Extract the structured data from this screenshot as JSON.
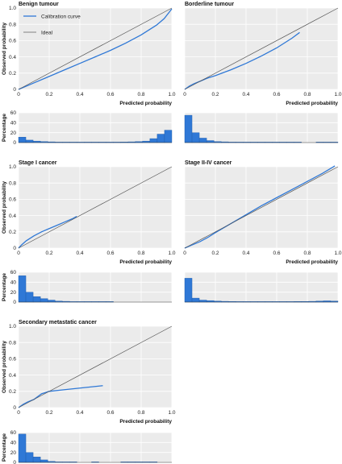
{
  "legend": {
    "calibration_label": "Calibration curve",
    "ideal_label": "Ideal"
  },
  "colors": {
    "calibration": "#2f78d6",
    "ideal": "#555555",
    "panel_bg": "#ebebeb",
    "bar": "#2f78d6"
  },
  "chart_data": [
    {
      "type": "line",
      "title": "Benign tumour",
      "xlabel": "Predicted probability",
      "ylabel": "Observed probability",
      "xlim": [
        0,
        1
      ],
      "ylim": [
        0,
        1
      ],
      "xticks": [
        "0",
        "0.2",
        "0.4",
        "0.6",
        "0.8",
        "1.0"
      ],
      "yticks": [
        "0",
        "0.2",
        "0.4",
        "0.6",
        "0.8",
        "1.0"
      ],
      "series": [
        {
          "name": "Calibration curve",
          "x": [
            0,
            0.1,
            0.2,
            0.3,
            0.4,
            0.5,
            0.6,
            0.7,
            0.8,
            0.9,
            0.95,
            1.0
          ],
          "y": [
            0,
            0.08,
            0.16,
            0.24,
            0.32,
            0.4,
            0.48,
            0.57,
            0.67,
            0.79,
            0.87,
            0.99
          ]
        },
        {
          "name": "Ideal",
          "x": [
            0,
            1
          ],
          "y": [
            0,
            1
          ]
        }
      ],
      "histogram": {
        "ylabel": "Percentage",
        "yticks": [
          "0",
          "20",
          "40",
          "60"
        ],
        "ylim": [
          0,
          60
        ],
        "values": [
          11,
          5,
          3,
          2,
          1.5,
          1,
          1,
          0.8,
          0.8,
          1,
          1,
          1,
          1,
          1,
          1.2,
          1.5,
          2,
          3,
          8,
          17,
          25
        ]
      }
    },
    {
      "type": "line",
      "title": "Borderline tumour",
      "xlabel": "Predicted probability",
      "ylabel": "",
      "xlim": [
        0,
        1
      ],
      "ylim": [
        0,
        1
      ],
      "xticks": [
        "0",
        "0.2",
        "0.4",
        "0.6",
        "0.8",
        "1.0"
      ],
      "yticks": [],
      "series": [
        {
          "name": "Calibration curve",
          "x": [
            0,
            0.03,
            0.06,
            0.1,
            0.15,
            0.2,
            0.3,
            0.4,
            0.5,
            0.6,
            0.7,
            0.75
          ],
          "y": [
            0,
            0.04,
            0.07,
            0.1,
            0.14,
            0.17,
            0.24,
            0.32,
            0.41,
            0.51,
            0.63,
            0.7
          ]
        },
        {
          "name": "Ideal",
          "x": [
            0,
            1
          ],
          "y": [
            0,
            1
          ]
        }
      ],
      "histogram": {
        "ylabel": "",
        "yticks": [],
        "ylim": [
          0,
          60
        ],
        "values": [
          55,
          20,
          9,
          4,
          2,
          1.5,
          1,
          0.8,
          0.6,
          0.5,
          0.4,
          0.3,
          0.3,
          0.2,
          0.2,
          0.1,
          0,
          0,
          0.1,
          0.2,
          0.2
        ]
      }
    },
    {
      "type": "line",
      "title": "Stage I cancer",
      "xlabel": "Predicted probability",
      "ylabel": "Observed probability",
      "xlim": [
        0,
        1
      ],
      "ylim": [
        0,
        1
      ],
      "xticks": [
        "0",
        "0.2",
        "0.4",
        "0.6",
        "0.8",
        "1.0"
      ],
      "yticks": [
        "0",
        "0.2",
        "0.4",
        "0.6",
        "0.8",
        "1.0"
      ],
      "series": [
        {
          "name": "Calibration curve",
          "x": [
            0,
            0.02,
            0.05,
            0.1,
            0.15,
            0.2,
            0.25,
            0.3,
            0.35,
            0.38
          ],
          "y": [
            0,
            0.04,
            0.09,
            0.15,
            0.2,
            0.24,
            0.28,
            0.32,
            0.36,
            0.39
          ]
        },
        {
          "name": "Ideal",
          "x": [
            0,
            1
          ],
          "y": [
            0,
            1
          ]
        }
      ],
      "histogram": {
        "ylabel": "Percentage",
        "yticks": [
          "0",
          "20",
          "40",
          "60"
        ],
        "ylim": [
          0,
          60
        ],
        "values": [
          53,
          20,
          11,
          7,
          4,
          2,
          1.5,
          0.8,
          0.5,
          0.4,
          0.3,
          0.2,
          0.1,
          0,
          0,
          0,
          0,
          0,
          0,
          0,
          0
        ]
      }
    },
    {
      "type": "line",
      "title": "Stage II-IV cancer",
      "xlabel": "Predicted probability",
      "ylabel": "",
      "xlim": [
        0,
        1
      ],
      "ylim": [
        0,
        1
      ],
      "xticks": [
        "0",
        "0.2",
        "0.4",
        "0.6",
        "0.8",
        "1.0"
      ],
      "yticks": [],
      "series": [
        {
          "name": "Calibration curve",
          "x": [
            0,
            0.05,
            0.1,
            0.15,
            0.2,
            0.3,
            0.4,
            0.5,
            0.6,
            0.7,
            0.8,
            0.9,
            0.98
          ],
          "y": [
            0,
            0.04,
            0.08,
            0.13,
            0.19,
            0.3,
            0.41,
            0.52,
            0.62,
            0.72,
            0.82,
            0.92,
            1.01
          ]
        },
        {
          "name": "Ideal",
          "x": [
            0,
            1
          ],
          "y": [
            0,
            1
          ]
        }
      ],
      "histogram": {
        "ylabel": "",
        "yticks": [],
        "ylim": [
          0,
          60
        ],
        "values": [
          48,
          8,
          4,
          3,
          2,
          1.5,
          1.2,
          1,
          1,
          1,
          1,
          1,
          1,
          1,
          1,
          1.2,
          1.3,
          1.5,
          2,
          2.5,
          2
        ]
      }
    },
    {
      "type": "line",
      "title": "Secondary metastatic cancer",
      "xlabel": "Predicted probability",
      "ylabel": "Observed probability",
      "xlim": [
        0,
        1
      ],
      "ylim": [
        0,
        1
      ],
      "xticks": [
        "0",
        "0.2",
        "0.4",
        "0.6",
        "0.8",
        "1.0"
      ],
      "yticks": [
        "0",
        "0.2",
        "0.4",
        "0.6",
        "0.8",
        "1.0"
      ],
      "series": [
        {
          "name": "Calibration curve",
          "x": [
            0,
            0.03,
            0.06,
            0.1,
            0.15,
            0.2,
            0.3,
            0.4,
            0.5,
            0.55
          ],
          "y": [
            0,
            0.04,
            0.07,
            0.1,
            0.17,
            0.2,
            0.22,
            0.24,
            0.26,
            0.27
          ]
        },
        {
          "name": "Ideal",
          "x": [
            0,
            1
          ],
          "y": [
            0,
            1
          ]
        }
      ],
      "histogram": {
        "ylabel": "Percentage",
        "yticks": [
          "0",
          "20",
          "40",
          "60"
        ],
        "ylim": [
          0,
          60
        ],
        "values": [
          57,
          20,
          11,
          5,
          2,
          1,
          0.5,
          0.3,
          0,
          0,
          0.5,
          0,
          0,
          0,
          0.2,
          0.1,
          0.1,
          0.1,
          0.1,
          0,
          0
        ]
      }
    }
  ]
}
